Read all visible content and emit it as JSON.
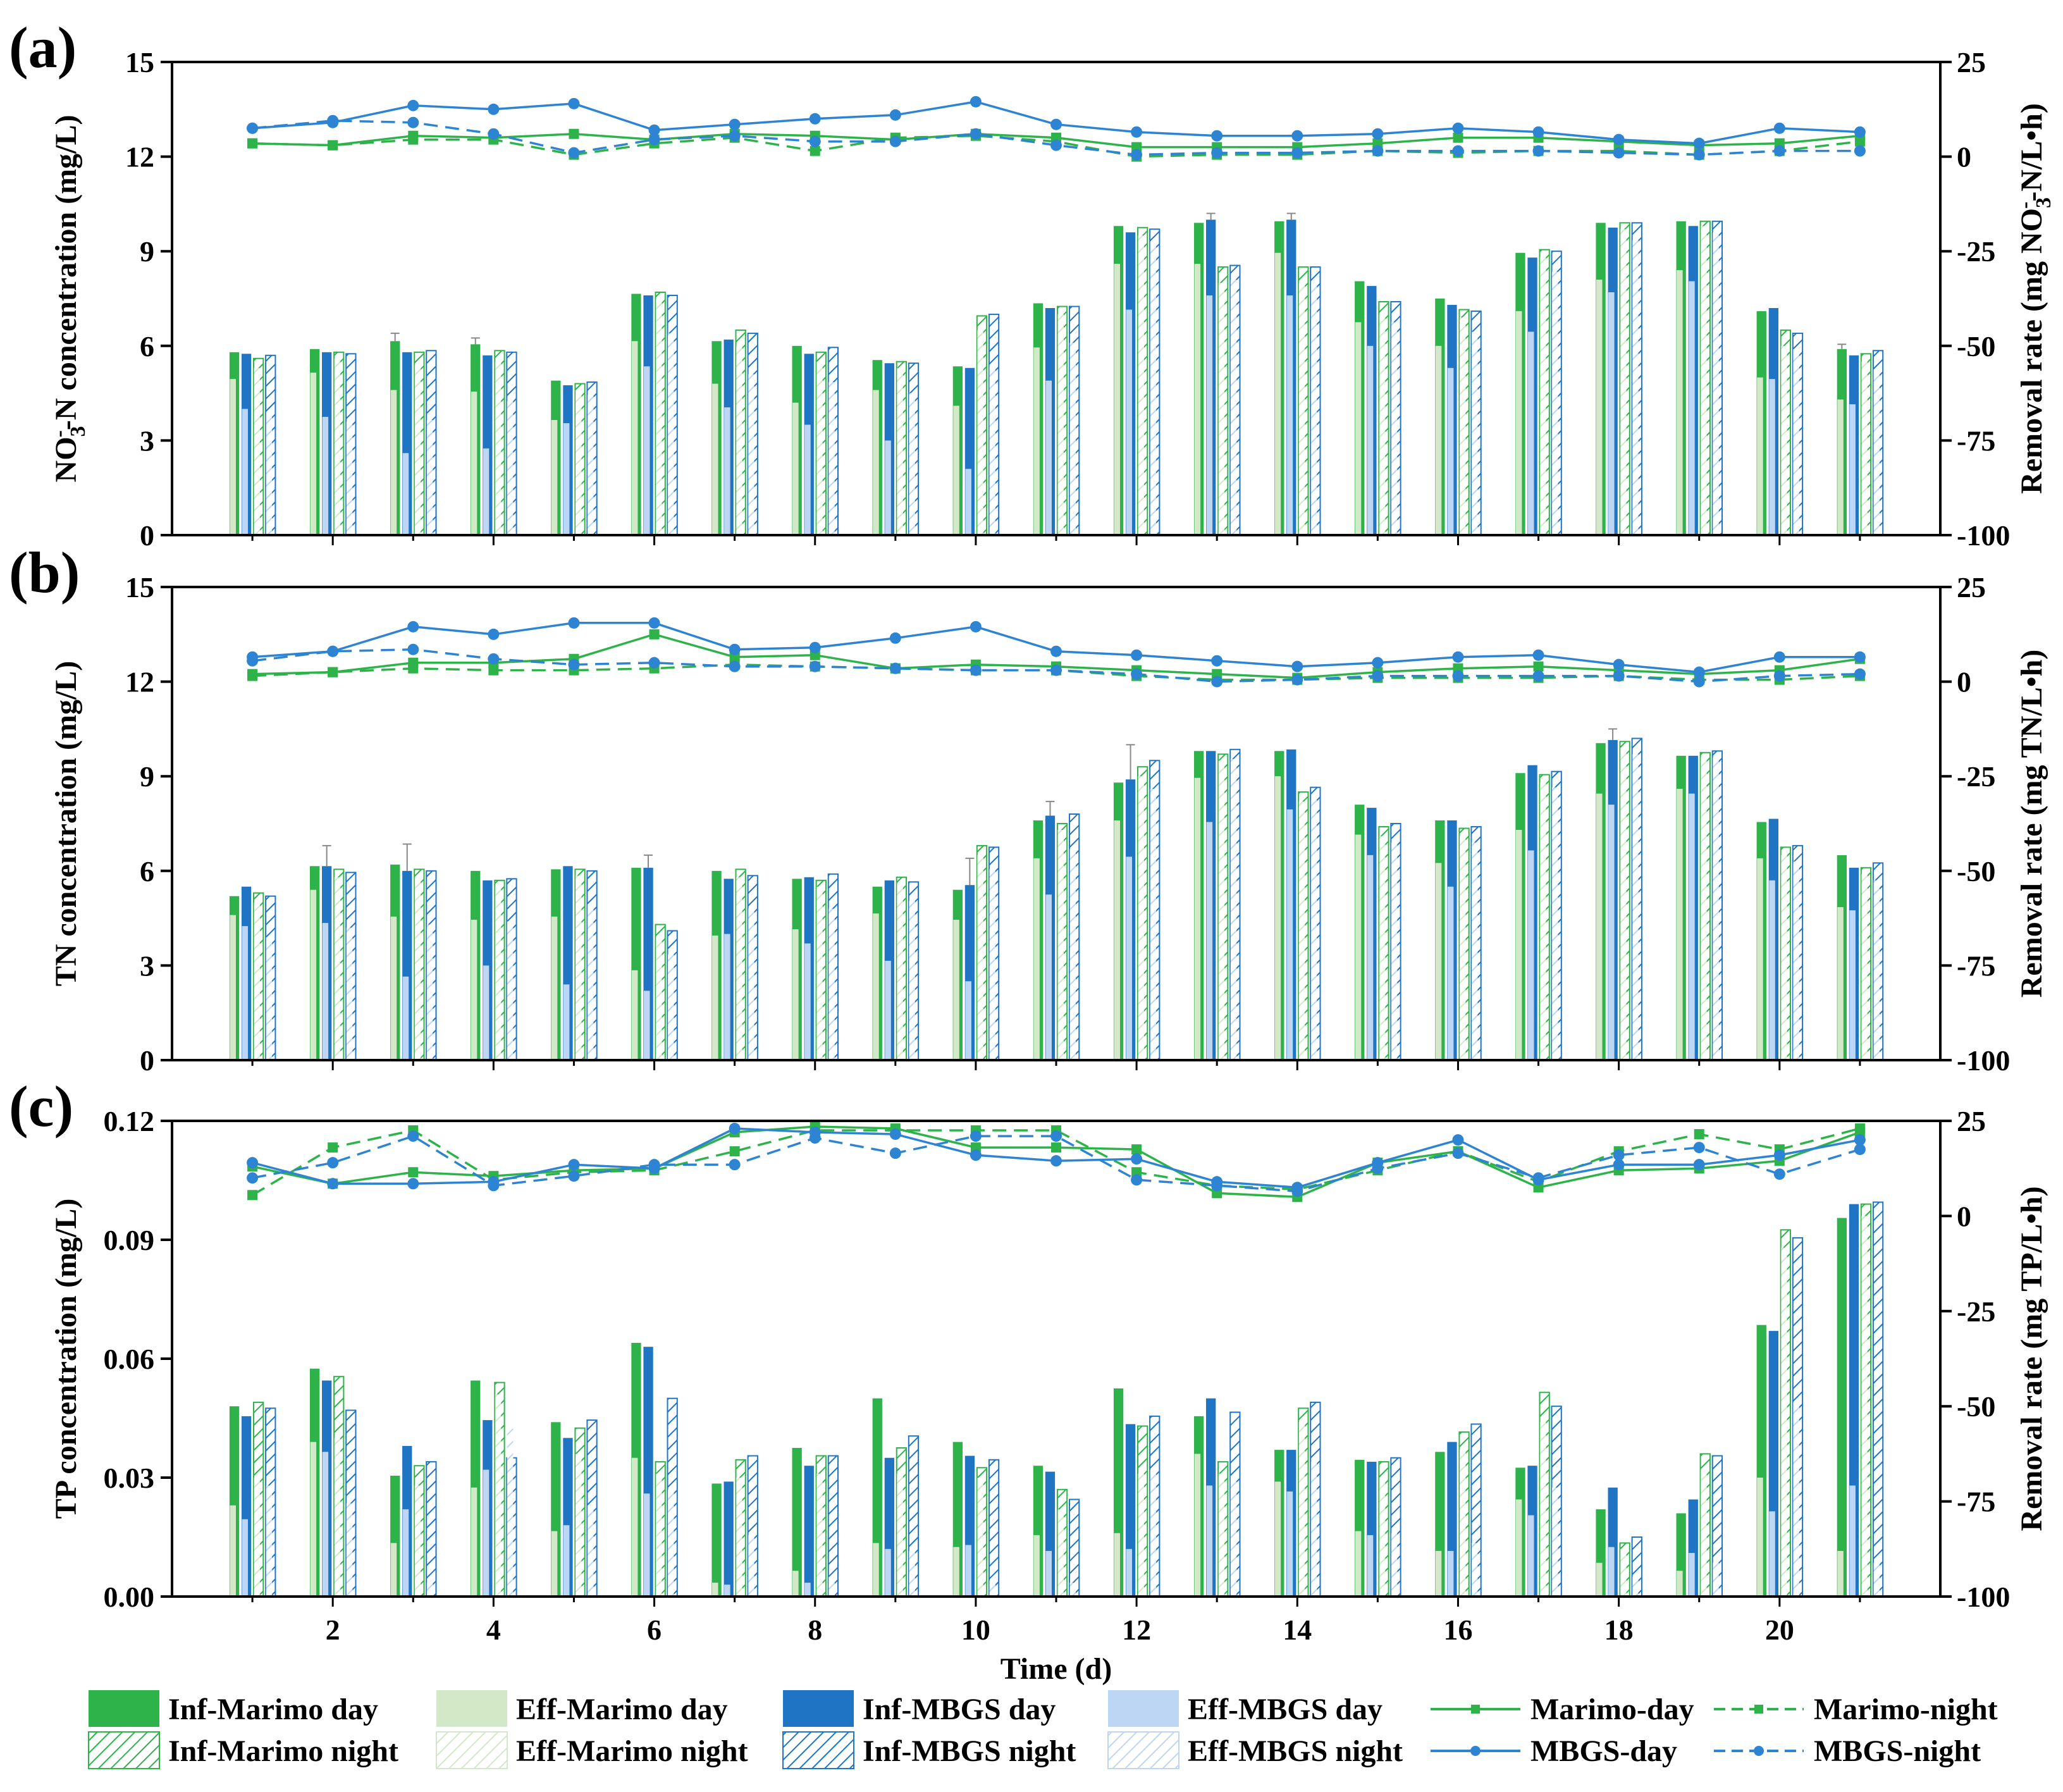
{
  "chart_data": [
    {
      "panel": "(a)",
      "type": "bar",
      "ylabel": "NO3-N concentration (mg/L)",
      "ylabel_parts": {
        "pre": "NO",
        "sub": "3",
        "sup": "-",
        "post": "-N concentration (mg/L)"
      },
      "y2label": "Removal rate (mg NO3-N/L•h)",
      "y2label_parts": {
        "pre": "Removal rate (mg NO",
        "sub": "3",
        "sup": "-",
        "post": "-N/L•h)"
      },
      "ylim": [
        0,
        15
      ],
      "yticks": [
        "0",
        "3",
        "6",
        "9",
        "12",
        "15"
      ],
      "y2lim": [
        -100,
        25
      ],
      "y2ticks": [
        "-100",
        "-75",
        "-50",
        "-25",
        "0",
        "25"
      ],
      "x": [
        1,
        2,
        3,
        4,
        5,
        6,
        7,
        8,
        9,
        10,
        11,
        12,
        13,
        14,
        15,
        16,
        17,
        18,
        19,
        20,
        21
      ],
      "bars": {
        "Inf-Marimo day": [
          5.8,
          5.9,
          6.15,
          6.05,
          4.9,
          7.65,
          6.15,
          6.0,
          5.55,
          5.35,
          7.35,
          9.8,
          9.9,
          9.95,
          8.05,
          7.5,
          8.95,
          9.9,
          9.95,
          7.1,
          5.9
        ],
        "Eff-Marimo day": [
          4.95,
          5.15,
          4.6,
          4.55,
          3.65,
          6.15,
          4.8,
          4.2,
          4.6,
          4.1,
          5.95,
          8.6,
          8.6,
          8.95,
          6.75,
          6.0,
          7.1,
          8.1,
          8.4,
          5.0,
          4.3
        ],
        "Inf-MBGS day": [
          5.75,
          5.8,
          5.8,
          5.7,
          4.75,
          7.6,
          6.2,
          5.75,
          5.45,
          5.3,
          7.2,
          9.6,
          10.0,
          10.0,
          7.9,
          7.3,
          8.8,
          9.75,
          9.8,
          7.2,
          5.7
        ],
        "Eff-MBGS day": [
          4.0,
          3.75,
          2.6,
          2.75,
          3.55,
          5.35,
          4.05,
          3.5,
          3.0,
          2.1,
          4.9,
          7.15,
          7.6,
          7.6,
          6.0,
          5.3,
          6.45,
          7.7,
          8.05,
          4.95,
          4.15
        ],
        "Inf-Marimo night": [
          5.6,
          5.8,
          5.8,
          5.85,
          4.8,
          7.7,
          6.5,
          5.8,
          5.5,
          6.95,
          7.25,
          9.75,
          8.5,
          8.5,
          7.4,
          7.15,
          9.05,
          9.9,
          9.95,
          6.5,
          5.75
        ],
        "Eff-Marimo night": [
          5.3,
          5.6,
          5.4,
          5.5,
          4.6,
          7.5,
          6.0,
          5.5,
          5.3,
          6.5,
          7.0,
          9.5,
          8.0,
          8.0,
          7.0,
          6.9,
          8.8,
          9.7,
          9.8,
          6.0,
          5.5
        ],
        "Inf-MBGS night": [
          5.7,
          5.75,
          5.85,
          5.8,
          4.85,
          7.6,
          6.4,
          5.95,
          5.45,
          7.0,
          7.25,
          9.7,
          8.55,
          8.5,
          7.4,
          7.1,
          9.0,
          9.9,
          9.95,
          6.4,
          5.85
        ],
        "Eff-MBGS night": [
          3.9,
          3.6,
          3.65,
          4.25,
          4.45,
          6.4,
          5.1,
          4.85,
          4.5,
          5.4,
          6.1,
          9.3,
          8.1,
          8.05,
          6.75,
          6.45,
          8.35,
          9.35,
          9.6,
          5.9,
          5.25
        ]
      },
      "errors": {
        "Inf-Marimo day": [
          0,
          0,
          0.25,
          0.2,
          0,
          0,
          0,
          0,
          0,
          0,
          0,
          0,
          0,
          0,
          0,
          0,
          0,
          0,
          0,
          0,
          0.15
        ],
        "Inf-MBGS day": [
          0,
          0,
          0,
          0,
          0,
          0,
          0,
          0,
          0,
          0,
          0,
          0,
          0.2,
          0.2,
          0,
          0,
          0,
          0,
          0,
          0,
          0
        ]
      },
      "lines": {
        "Marimo-day": [
          3.5,
          3.0,
          5.5,
          5.0,
          6.0,
          4.5,
          6.0,
          5.5,
          4.5,
          6.0,
          5.0,
          2.5,
          2.5,
          2.5,
          3.5,
          5.0,
          5.0,
          4.0,
          3.0,
          3.5,
          5.5
        ],
        "Marimo-night": [
          3.5,
          3.0,
          4.5,
          4.5,
          0.5,
          3.5,
          5.0,
          1.5,
          5.0,
          5.5,
          4.0,
          0,
          0.5,
          0.5,
          1.5,
          1.0,
          1.5,
          1.5,
          0.5,
          1.5,
          4.0
        ],
        "MBGS-day": [
          7.5,
          9.0,
          13.5,
          12.5,
          14.0,
          7.0,
          8.5,
          10.0,
          11.0,
          14.5,
          8.5,
          6.5,
          5.5,
          5.5,
          6.0,
          7.5,
          6.5,
          4.5,
          3.5,
          7.5,
          6.5
        ],
        "MBGS-night": [
          7.5,
          9.5,
          9.0,
          6.0,
          1.0,
          4.5,
          5.5,
          4.0,
          4.0,
          6.0,
          3.0,
          0.5,
          1.0,
          1.0,
          1.5,
          1.5,
          1.5,
          1.0,
          0.5,
          1.5,
          1.5
        ]
      }
    },
    {
      "panel": "(b)",
      "type": "bar",
      "ylabel": "TN concentration (mg/L)",
      "y2label": "Removal rate (mg TN/L•h)",
      "ylim": [
        0,
        15
      ],
      "yticks": [
        "0",
        "3",
        "6",
        "9",
        "12",
        "15"
      ],
      "y2lim": [
        -100,
        25
      ],
      "y2ticks": [
        "-100",
        "-75",
        "-50",
        "-25",
        "0",
        "25"
      ],
      "x": [
        1,
        2,
        3,
        4,
        5,
        6,
        7,
        8,
        9,
        10,
        11,
        12,
        13,
        14,
        15,
        16,
        17,
        18,
        19,
        20,
        21
      ],
      "bars": {
        "Inf-Marimo day": [
          5.2,
          6.15,
          6.2,
          6.0,
          6.05,
          6.1,
          6.0,
          5.75,
          5.5,
          5.4,
          7.6,
          8.8,
          9.8,
          9.8,
          8.1,
          7.6,
          9.1,
          10.05,
          9.65,
          7.55,
          6.5
        ],
        "Eff-Marimo day": [
          4.6,
          5.4,
          4.55,
          4.45,
          4.55,
          2.85,
          3.95,
          4.15,
          4.65,
          4.45,
          6.4,
          7.6,
          8.95,
          9.0,
          7.15,
          6.25,
          7.3,
          8.45,
          8.6,
          6.4,
          4.85
        ],
        "Inf-MBGS day": [
          5.5,
          6.15,
          6.0,
          5.7,
          6.15,
          6.1,
          5.75,
          5.8,
          5.7,
          5.55,
          7.75,
          8.9,
          9.8,
          9.85,
          8.0,
          7.6,
          9.35,
          10.15,
          9.65,
          7.65,
          6.1
        ],
        "Eff-MBGS day": [
          4.25,
          4.35,
          2.65,
          3.0,
          2.4,
          2.2,
          4.0,
          3.7,
          3.15,
          2.5,
          5.25,
          6.45,
          7.55,
          7.95,
          6.5,
          5.5,
          6.65,
          8.1,
          8.45,
          5.7,
          4.75
        ],
        "Inf-Marimo night": [
          5.3,
          6.05,
          6.05,
          5.7,
          6.05,
          4.3,
          6.05,
          5.7,
          5.8,
          6.8,
          7.5,
          9.3,
          9.7,
          8.5,
          7.4,
          7.35,
          9.05,
          10.1,
          9.75,
          6.75,
          6.1
        ],
        "Eff-Marimo night": [
          5.0,
          5.8,
          5.8,
          5.5,
          5.85,
          3.9,
          5.8,
          5.5,
          5.6,
          6.5,
          7.3,
          9.0,
          9.5,
          8.2,
          7.1,
          7.1,
          8.8,
          9.9,
          9.6,
          6.5,
          5.9
        ],
        "Inf-MBGS night": [
          5.2,
          5.95,
          6.0,
          5.75,
          6.0,
          4.1,
          5.85,
          5.9,
          5.65,
          6.75,
          7.8,
          9.5,
          9.85,
          8.65,
          7.5,
          7.4,
          9.15,
          10.2,
          9.8,
          6.8,
          6.25
        ],
        "Eff-MBGS night": [
          3.9,
          4.2,
          4.3,
          4.4,
          4.95,
          3.35,
          4.8,
          4.8,
          5.05,
          6.05,
          6.7,
          8.6,
          9.55,
          8.25,
          6.9,
          6.9,
          8.65,
          9.7,
          9.6,
          6.3,
          5.7
        ]
      },
      "errors": {
        "Inf-MBGS day": [
          0,
          0,
          0,
          0,
          0,
          0,
          0,
          0,
          0,
          0,
          0,
          0,
          0,
          0,
          0,
          0,
          0,
          0,
          0,
          0,
          0
        ],
        "Eff-Marimo day": [
          0,
          0,
          0,
          0,
          0,
          0,
          0,
          0,
          0,
          0,
          0,
          0,
          0,
          0,
          0,
          0,
          0,
          0,
          0,
          0,
          0
        ]
      },
      "errors_abs": [
        {
          "x": 2,
          "series": "Inf-MBGS day",
          "top": 6.8
        },
        {
          "x": 3,
          "series": "Inf-MBGS day",
          "top": 6.85
        },
        {
          "x": 6,
          "series": "Inf-MBGS day",
          "top": 6.5
        },
        {
          "x": 10,
          "series": "Inf-MBGS day",
          "top": 6.4
        },
        {
          "x": 11,
          "series": "Inf-MBGS day",
          "top": 8.2
        },
        {
          "x": 12,
          "series": "Inf-MBGS day",
          "top": 10.0
        },
        {
          "x": 18,
          "series": "Inf-MBGS day",
          "top": 10.5
        }
      ],
      "lines": {
        "Marimo-day": [
          2.0,
          2.5,
          5.0,
          5.0,
          6.0,
          12.5,
          6.5,
          7.0,
          3.5,
          4.5,
          4.0,
          3.0,
          2.0,
          1.0,
          2.5,
          3.5,
          4.0,
          3.0,
          2.0,
          3.0,
          6.0
        ],
        "Marimo-night": [
          1.5,
          2.5,
          3.5,
          3.0,
          3.0,
          3.5,
          4.5,
          4.0,
          3.5,
          3.0,
          3.0,
          1.5,
          0.5,
          0.5,
          1.0,
          1.0,
          1.0,
          1.5,
          0.5,
          0.5,
          1.5
        ],
        "MBGS-day": [
          6.5,
          8.0,
          14.5,
          12.5,
          15.5,
          15.5,
          8.5,
          9.0,
          11.5,
          14.5,
          8.0,
          7.0,
          5.5,
          4.0,
          5.0,
          6.5,
          7.0,
          4.5,
          2.5,
          6.5,
          6.5
        ],
        "MBGS-night": [
          5.5,
          8.0,
          8.5,
          6.0,
          4.5,
          5.0,
          4.0,
          4.0,
          3.5,
          3.0,
          3.0,
          2.0,
          0,
          0.5,
          1.5,
          1.5,
          1.5,
          1.5,
          0,
          1.5,
          2.0
        ]
      }
    },
    {
      "panel": "(c)",
      "type": "bar",
      "xlabel": "Time (d)",
      "ylabel": "TP concentration (mg/L)",
      "y2label": "Removal rate (mg TP/L•h)",
      "ylim": [
        0,
        0.12
      ],
      "yticks": [
        "0.00",
        "0.03",
        "0.06",
        "0.09",
        "0.12"
      ],
      "y2lim": [
        -100,
        25
      ],
      "y2ticks": [
        "-100",
        "-75",
        "-50",
        "-25",
        "0",
        "25"
      ],
      "x": [
        1,
        2,
        3,
        4,
        5,
        6,
        7,
        8,
        9,
        10,
        11,
        12,
        13,
        14,
        15,
        16,
        17,
        18,
        19,
        20,
        21
      ],
      "xticks": [
        "2",
        "4",
        "6",
        "8",
        "10",
        "12",
        "14",
        "16",
        "18",
        "20"
      ],
      "bars": {
        "Inf-Marimo day": [
          0.048,
          0.0575,
          0.0305,
          0.0545,
          0.044,
          0.064,
          0.0285,
          0.0375,
          0.05,
          0.039,
          0.033,
          0.0525,
          0.0455,
          0.037,
          0.0345,
          0.0365,
          0.0325,
          0.022,
          0.021,
          0.0685,
          0.0955
        ],
        "Eff-Marimo day": [
          0.023,
          0.039,
          0.0135,
          0.0275,
          0.0165,
          0.035,
          0.0035,
          0.0065,
          0.0135,
          0.0125,
          0.0155,
          0.016,
          0.036,
          0.029,
          0.0165,
          0.0115,
          0.0245,
          0.0085,
          0.0065,
          0.03,
          0.0115
        ],
        "Inf-MBGS day": [
          0.0455,
          0.0545,
          0.038,
          0.0445,
          0.04,
          0.063,
          0.029,
          0.033,
          0.035,
          0.0355,
          0.0315,
          0.0435,
          0.05,
          0.037,
          0.034,
          0.039,
          0.033,
          0.0275,
          0.0245,
          0.067,
          0.099
        ],
        "Eff-MBGS day": [
          0.0195,
          0.0365,
          0.022,
          0.032,
          0.018,
          0.026,
          0.003,
          0.0035,
          0.012,
          0.013,
          0.0115,
          0.012,
          0.028,
          0.0265,
          0.0155,
          0.0115,
          0.0205,
          0.0125,
          0.011,
          0.0215,
          0.028
        ],
        "Inf-Marimo night": [
          0.049,
          0.0555,
          0.033,
          0.054,
          0.0425,
          0.034,
          0.0345,
          0.0355,
          0.0375,
          0.0325,
          0.027,
          0.043,
          0.034,
          0.0475,
          0.034,
          0.0415,
          0.0515,
          0.0135,
          0.036,
          0.0925,
          0.099
        ],
        "Eff-Marimo night": [
          0.03,
          0.04,
          0.028,
          0.051,
          0.036,
          0.031,
          0.03,
          0.031,
          0.031,
          0.03,
          0.022,
          0.031,
          0.031,
          0.044,
          0.03,
          0.037,
          0.044,
          0.012,
          0.032,
          0.088,
          0.096
        ],
        "Inf-MBGS night": [
          0.0475,
          0.047,
          0.034,
          0.035,
          0.0445,
          0.05,
          0.0355,
          0.0355,
          0.0405,
          0.0345,
          0.0245,
          0.0455,
          0.0465,
          0.049,
          0.035,
          0.0435,
          0.048,
          0.015,
          0.0355,
          0.0905,
          0.0995
        ],
        "Eff-MBGS night": [
          0.028,
          0.0235,
          0.0035,
          0.0435,
          0.023,
          0.027,
          0.0155,
          0.005,
          0.0115,
          0.004,
          0.0035,
          0.032,
          0.0305,
          0.034,
          0.016,
          0.0135,
          0.0275,
          0.005,
          0.0085,
          0.049,
          0.0085
        ]
      },
      "errors": {},
      "lines": {
        "Marimo-day": [
          13.0,
          8.5,
          11.5,
          10.5,
          12.0,
          12.5,
          22.0,
          23.5,
          23.0,
          18.0,
          18.0,
          17.5,
          6.0,
          5.0,
          14.0,
          17.0,
          7.5,
          12.0,
          12.5,
          14.5,
          22.0
        ],
        "Marimo-night": [
          5.5,
          18.0,
          22.5,
          9.5,
          11.5,
          12.0,
          17.0,
          22.5,
          22.5,
          22.5,
          22.5,
          11.5,
          8.0,
          7.0,
          12.0,
          17.0,
          9.0,
          17.0,
          21.5,
          17.5,
          23.0
        ],
        "MBGS-day": [
          14.0,
          8.5,
          8.5,
          9.0,
          13.5,
          12.5,
          23.0,
          22.0,
          21.5,
          16.0,
          14.5,
          15.0,
          9.0,
          7.5,
          14.0,
          20.0,
          9.5,
          13.5,
          13.5,
          16.0,
          20.0
        ],
        "MBGS-night": [
          10.0,
          14.0,
          21.0,
          8.0,
          10.5,
          13.5,
          13.5,
          20.5,
          16.5,
          21.0,
          21.0,
          9.5,
          8.0,
          6.5,
          12.5,
          16.5,
          10.0,
          16.0,
          18.0,
          11.0,
          17.5
        ]
      }
    }
  ],
  "legend": {
    "items": [
      {
        "label": "Inf-Marimo day",
        "kind": "bar",
        "style": "solid",
        "color": "#2db34a"
      },
      {
        "label": "Eff-Marimo day",
        "kind": "bar",
        "style": "solid",
        "color": "#d3e8c7"
      },
      {
        "label": "Inf-MBGS day",
        "kind": "bar",
        "style": "solid",
        "color": "#1f74c4"
      },
      {
        "label": "Eff-MBGS day",
        "kind": "bar",
        "style": "solid",
        "color": "#bcd6f4"
      },
      {
        "label": "Marimo-day",
        "kind": "line",
        "style": "solid",
        "color": "#2db34a"
      },
      {
        "label": "Marimo-night",
        "kind": "line",
        "style": "dashed",
        "color": "#2db34a"
      },
      {
        "label": "Inf-Marimo night",
        "kind": "bar",
        "style": "hatch",
        "color": "#2db34a"
      },
      {
        "label": "Eff-Marimo night",
        "kind": "bar",
        "style": "hatch",
        "color": "#d3e8c7"
      },
      {
        "label": "Inf-MBGS night",
        "kind": "bar",
        "style": "hatch",
        "color": "#1f74c4"
      },
      {
        "label": "Eff-MBGS night",
        "kind": "bar",
        "style": "hatch",
        "color": "#bcd6f4"
      },
      {
        "label": "MBGS-day",
        "kind": "line",
        "style": "solid",
        "color": "#2d84d2"
      },
      {
        "label": "MBGS-night",
        "kind": "line",
        "style": "dashed",
        "color": "#2d84d2"
      }
    ]
  },
  "colors": {
    "marimo_inf": "#2db34a",
    "marimo_eff": "#d3e8c7",
    "mbgs_inf": "#1f74c4",
    "mbgs_eff": "#bcd6f4",
    "marimo_line": "#2db34a",
    "mbgs_line": "#2d84d2"
  }
}
